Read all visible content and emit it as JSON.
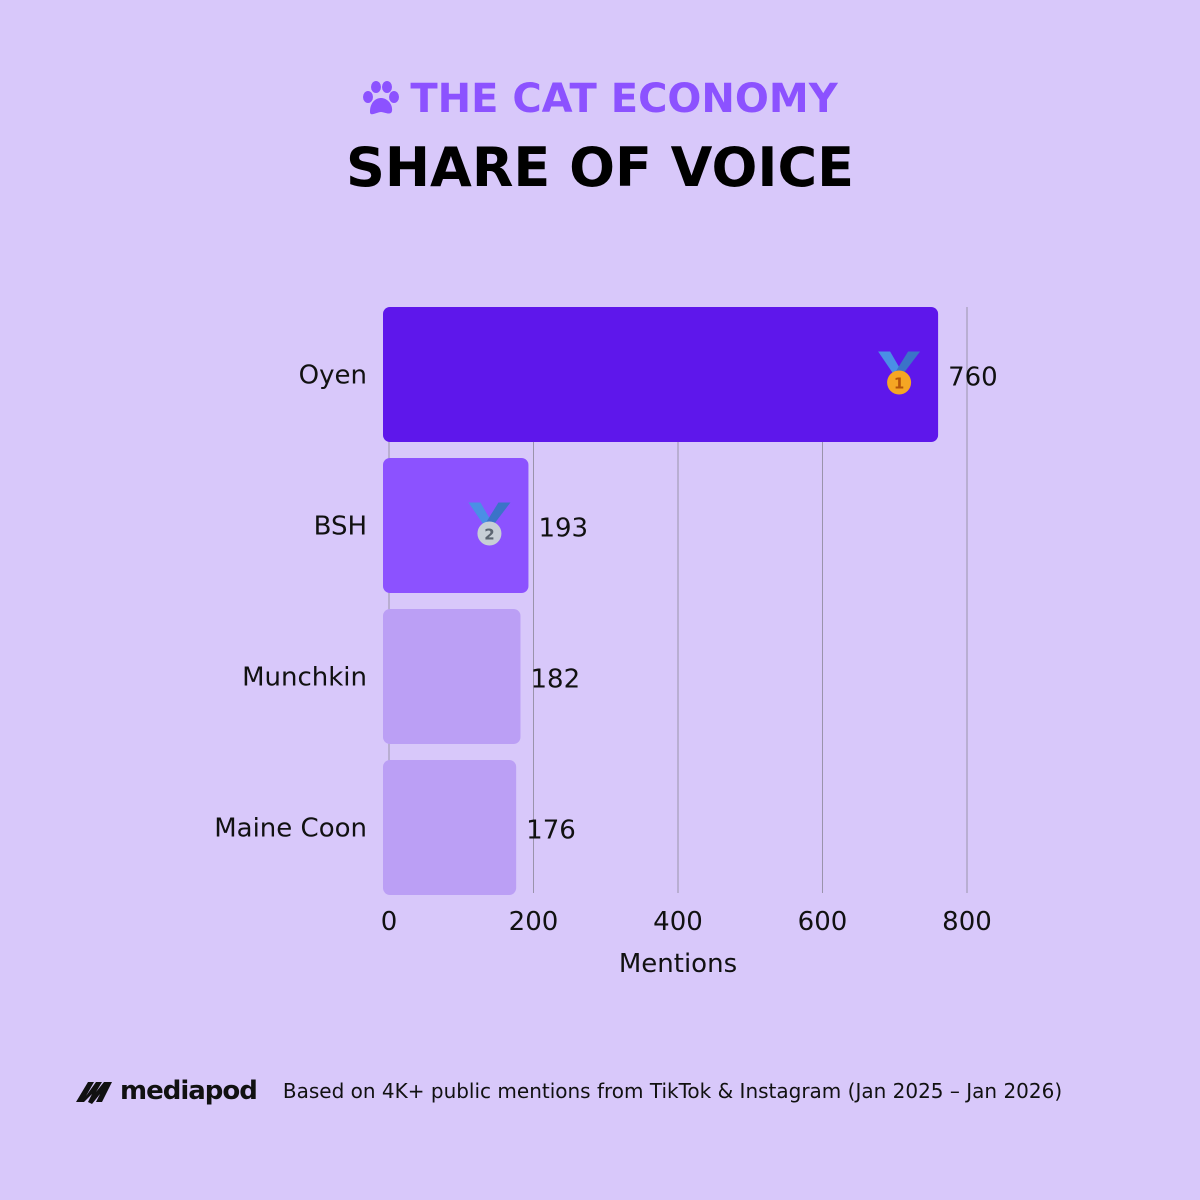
{
  "header": {
    "kicker": "THE CAT ECONOMY",
    "kicker_icon": "paw-icon",
    "title": "SHARE OF VOICE"
  },
  "chart_data": {
    "type": "bar",
    "orientation": "horizontal",
    "categories": [
      "Oyen",
      "BSH",
      "Munchkin",
      "Maine Coon"
    ],
    "values": [
      760,
      193,
      182,
      176
    ],
    "data_labels": [
      "760",
      "193",
      "182",
      "176"
    ],
    "colors": [
      "#5e17eb",
      "#8c52ff",
      "#bb9ff5",
      "#bb9ff5"
    ],
    "annotations": [
      {
        "category": "Oyen",
        "icon": "gold-medal-1-icon"
      },
      {
        "category": "BSH",
        "icon": "silver-medal-2-icon"
      }
    ],
    "xlabel": "Mentions",
    "ylabel": "",
    "xlim": [
      0,
      800
    ],
    "xticks": [
      0,
      200,
      400,
      600,
      800
    ],
    "grid": "vertical"
  },
  "footer": {
    "brand": "mediapod",
    "note": "Based on 4K+ public mentions from TikTok & Instagram (Jan 2025 – Jan 2026)"
  }
}
